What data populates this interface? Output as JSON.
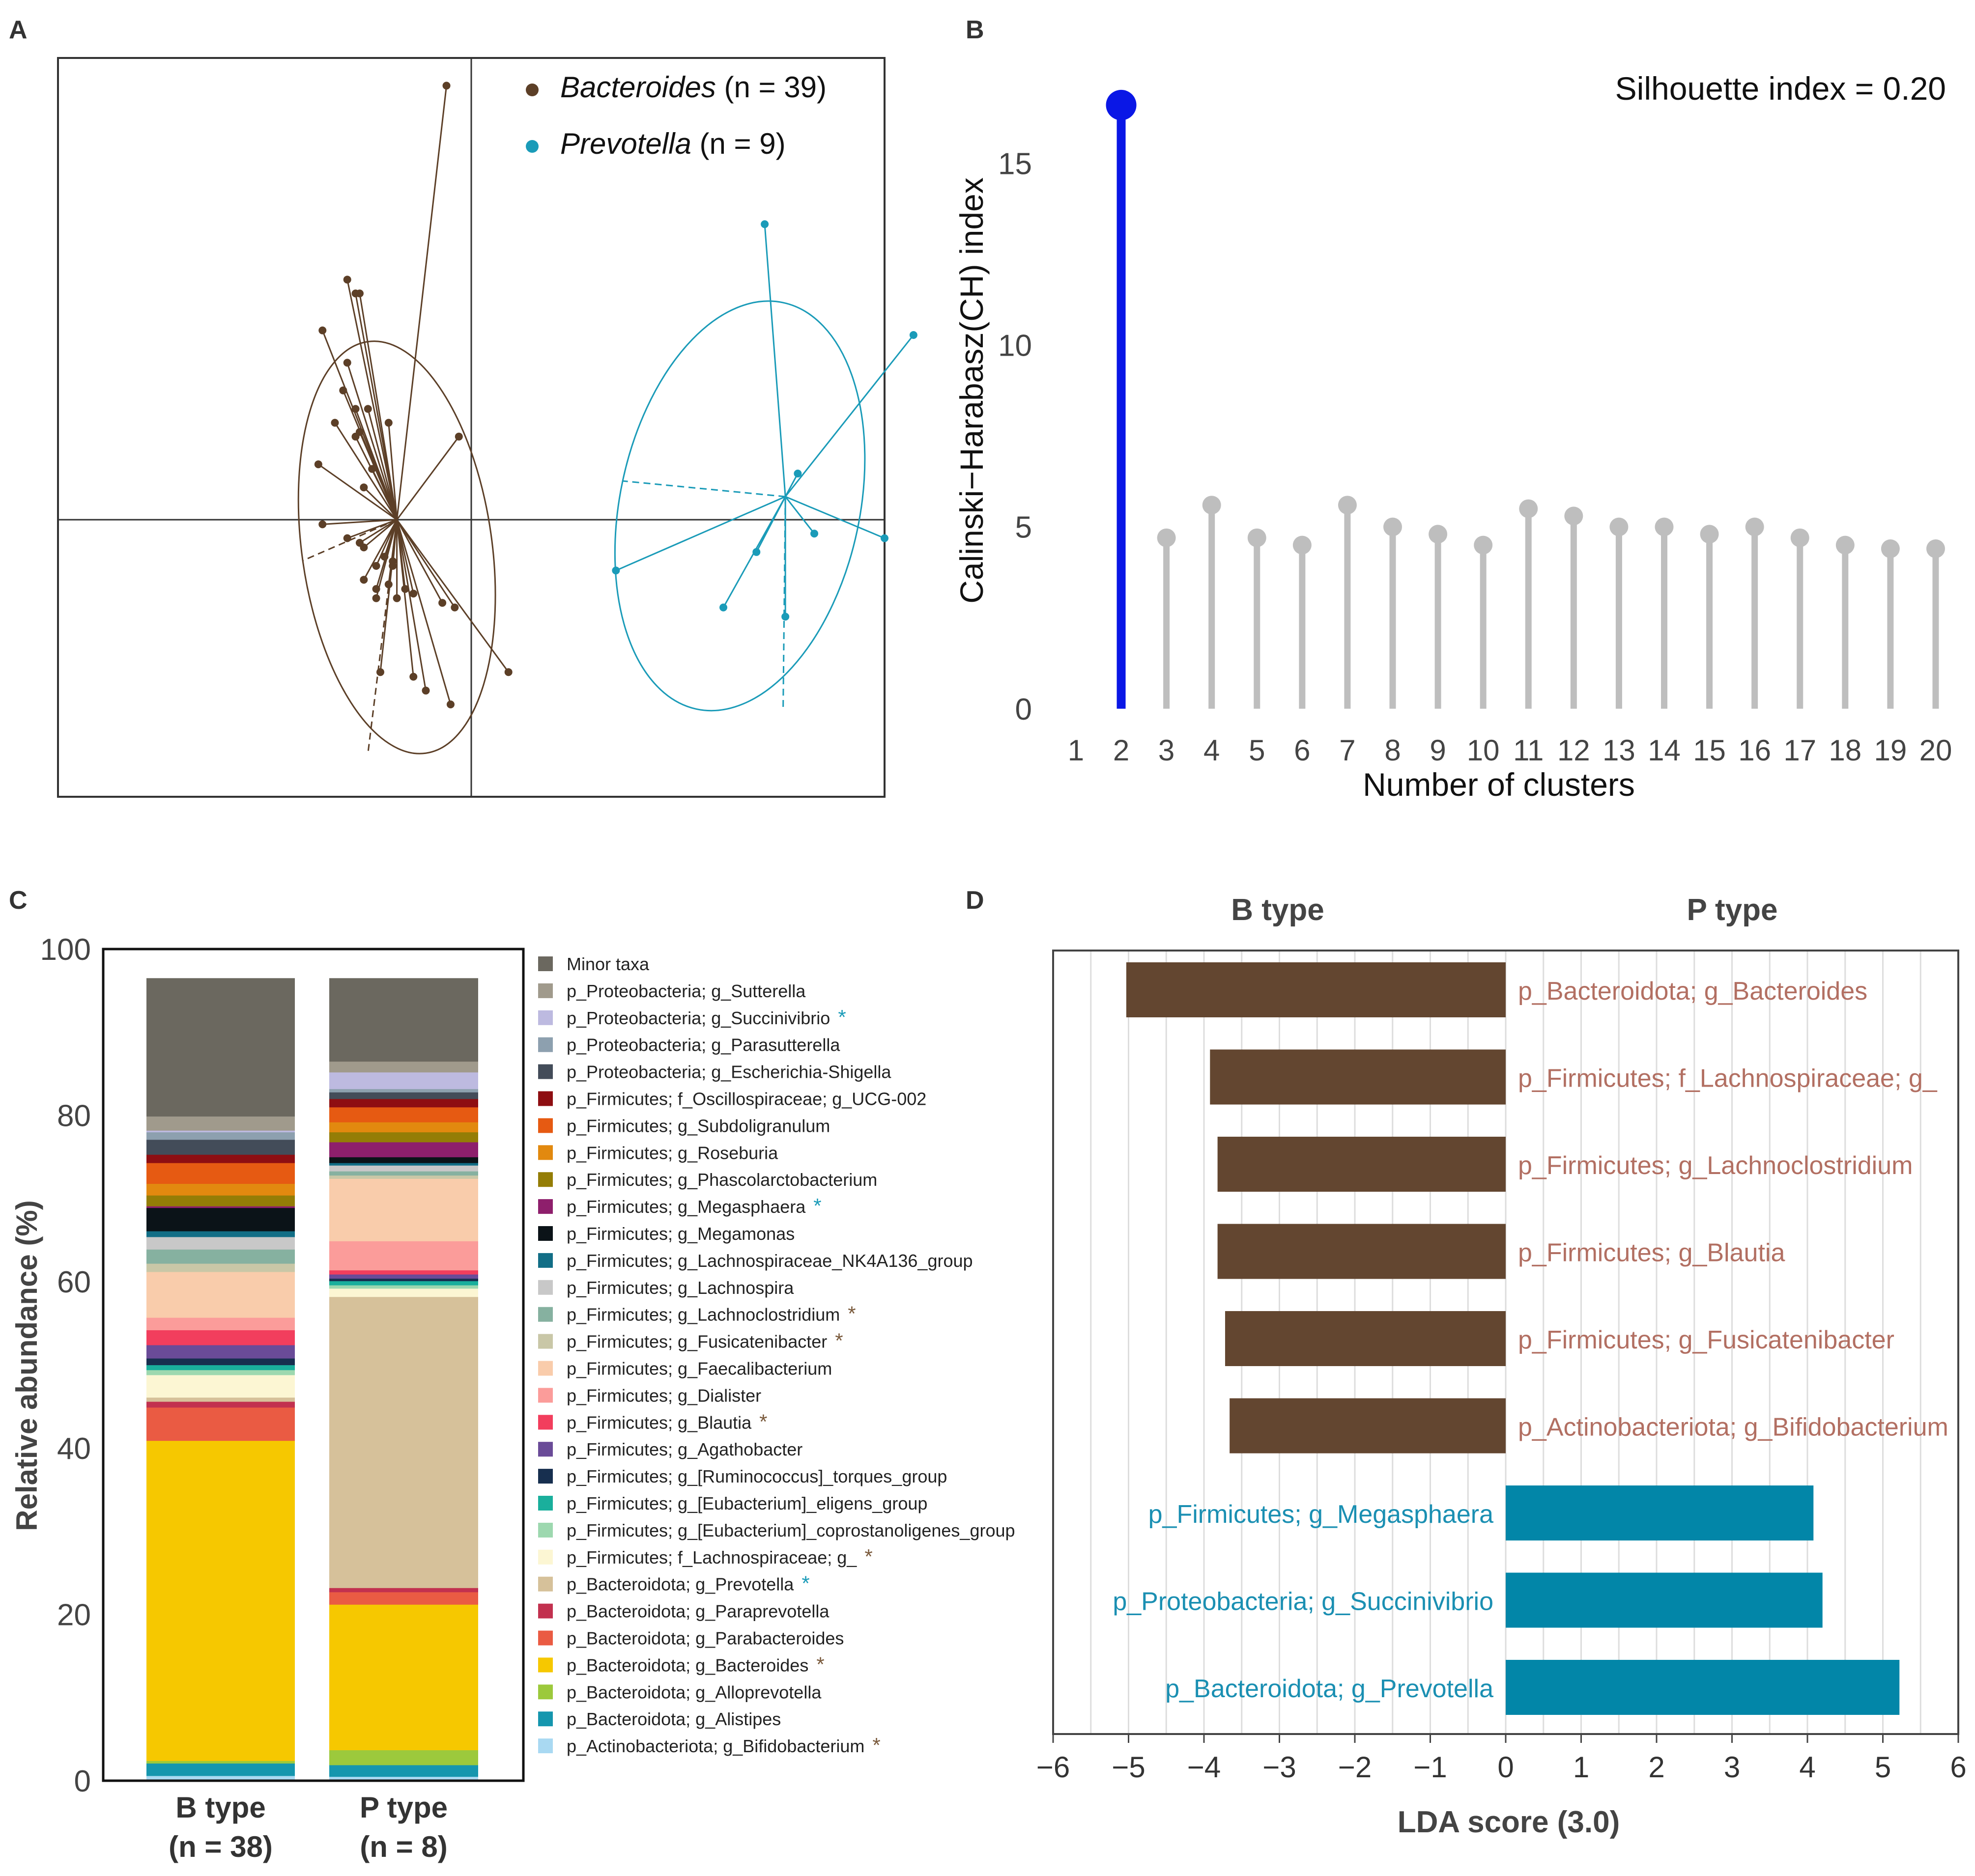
{
  "panel_labels": {
    "a": "A",
    "b": "B",
    "c": "C",
    "d": "D"
  },
  "chart_data": [
    {
      "panel": "A",
      "type": "scatter",
      "legend": [
        {
          "label": "Bacteroides",
          "n_label": "n = 39",
          "color": "#5C3F27"
        },
        {
          "label": "Prevotella",
          "n_label": "n = 9",
          "color": "#1A9BB8"
        }
      ],
      "legend_position": "top-right",
      "axis_lines": {
        "x": 0,
        "y": 0
      },
      "xlim": [
        -1.0,
        1.0
      ],
      "ylim": [
        -0.6,
        1.0
      ],
      "groups": [
        {
          "name": "Bacteroides",
          "color": "#5C3F27",
          "centroid": [
            -0.18,
            0.0
          ],
          "points": [
            [
              -0.06,
              0.94
            ],
            [
              -0.3,
              0.52
            ],
            [
              -0.28,
              0.49
            ],
            [
              -0.27,
              0.49
            ],
            [
              -0.36,
              0.41
            ],
            [
              -0.3,
              0.34
            ],
            [
              -0.31,
              0.28
            ],
            [
              -0.28,
              0.24
            ],
            [
              -0.25,
              0.24
            ],
            [
              -0.33,
              0.21
            ],
            [
              -0.2,
              0.21
            ],
            [
              -0.27,
              0.19
            ],
            [
              -0.28,
              0.18
            ],
            [
              -0.03,
              0.18
            ],
            [
              -0.37,
              0.12
            ],
            [
              -0.24,
              0.11
            ],
            [
              -0.26,
              0.07
            ],
            [
              -0.36,
              -0.01
            ],
            [
              -0.3,
              -0.04
            ],
            [
              -0.27,
              -0.05
            ],
            [
              -0.26,
              -0.06
            ],
            [
              -0.21,
              -0.08
            ],
            [
              -0.19,
              -0.09
            ],
            [
              -0.23,
              -0.1
            ],
            [
              -0.19,
              -0.1
            ],
            [
              -0.26,
              -0.13
            ],
            [
              -0.23,
              -0.15
            ],
            [
              -0.2,
              -0.14
            ],
            [
              -0.16,
              -0.15
            ],
            [
              -0.23,
              -0.17
            ],
            [
              -0.18,
              -0.17
            ],
            [
              -0.14,
              -0.16
            ],
            [
              -0.07,
              -0.18
            ],
            [
              -0.04,
              -0.19
            ],
            [
              -0.22,
              -0.33
            ],
            [
              -0.14,
              -0.34
            ],
            [
              -0.11,
              -0.37
            ],
            [
              -0.05,
              -0.4
            ],
            [
              0.09,
              -0.33
            ]
          ],
          "ellipse": {
            "cx": -0.18,
            "cy": -0.06,
            "rx": 0.23,
            "ry": 0.45,
            "rotation_deg": -8
          }
        },
        {
          "name": "Prevotella",
          "color": "#1A9BB8",
          "centroid": [
            0.76,
            0.05
          ],
          "points": [
            [
              0.71,
              0.64
            ],
            [
              1.07,
              0.4
            ],
            [
              0.79,
              0.1
            ],
            [
              1.0,
              -0.04
            ],
            [
              0.83,
              -0.03
            ],
            [
              0.69,
              -0.07
            ],
            [
              0.35,
              -0.11
            ],
            [
              0.61,
              -0.19
            ],
            [
              0.76,
              -0.21
            ]
          ],
          "ellipse": {
            "cx": 0.65,
            "cy": 0.03,
            "rx": 0.29,
            "ry": 0.45,
            "rotation_deg": 12
          }
        }
      ]
    },
    {
      "panel": "B",
      "type": "lollipop",
      "annotation": "Silhouette index = 0.20",
      "xlabel": "Number of clusters",
      "ylabel": "Calinski−Harabasz(CH) index",
      "x": [
        2,
        3,
        4,
        5,
        6,
        7,
        8,
        9,
        10,
        11,
        12,
        13,
        14,
        15,
        16,
        17,
        18,
        19,
        20
      ],
      "values": [
        16.6,
        4.7,
        5.6,
        4.7,
        4.5,
        5.6,
        5.0,
        4.8,
        4.5,
        5.5,
        5.3,
        5.0,
        5.0,
        4.8,
        5.0,
        4.7,
        4.5,
        4.4,
        4.4
      ],
      "highlight": {
        "x": 2,
        "color": "#0A17E6"
      },
      "point_color": "#BEBEBE",
      "xticks": [
        1,
        2,
        3,
        4,
        5,
        6,
        7,
        8,
        9,
        10,
        11,
        12,
        13,
        14,
        15,
        16,
        17,
        18,
        19,
        20
      ],
      "xtick_labels": [
        "1",
        "2",
        "3",
        "4",
        "5",
        "6",
        "7",
        "8",
        "9",
        "10",
        "11",
        "12",
        "13",
        "14",
        "15",
        "16",
        "17",
        "18",
        "19",
        "20"
      ],
      "yticks": [
        0,
        5,
        10,
        15
      ],
      "ytick_labels": [
        "0",
        "5",
        "10",
        "15"
      ],
      "xlim": [
        0.3,
        20.5
      ],
      "ylim": [
        -0.3,
        17.8
      ]
    },
    {
      "panel": "C",
      "type": "stacked_bar",
      "ylabel": "Relative abundance (%)",
      "ylim": [
        0,
        100
      ],
      "yticks": [
        0,
        20,
        40,
        60,
        80,
        100
      ],
      "ytick_labels": [
        "0",
        "20",
        "40",
        "60",
        "80",
        "100"
      ],
      "categories": [
        {
          "label": "B type",
          "sublabel": "(n = 38)"
        },
        {
          "label": "P type",
          "sublabel": "(n = 8)"
        }
      ],
      "series": [
        {
          "name": "p_Actinobacteriota; g_Bifidobacterium",
          "color": "#A9D9F2",
          "star": true,
          "star_color": "#7A5A3C",
          "values": [
            0.6,
            0.5
          ]
        },
        {
          "name": "p_Bacteroidota; g_Alistipes",
          "color": "#1596AE",
          "star": false,
          "values": [
            1.5,
            1.4
          ]
        },
        {
          "name": "p_Bacteroidota; g_Alloprevotella",
          "color": "#9CC93C",
          "star": false,
          "values": [
            0.3,
            1.8
          ]
        },
        {
          "name": "p_Bacteroidota; g_Bacteroides",
          "color": "#F6C800",
          "star": true,
          "star_color": "#7A5A3C",
          "values": [
            38.5,
            17.5
          ]
        },
        {
          "name": "p_Bacteroidota; g_Parabacteroides",
          "color": "#EA5B43",
          "star": false,
          "values": [
            4.0,
            1.5
          ]
        },
        {
          "name": "p_Bacteroidota; g_Paraprevotella",
          "color": "#C2314F",
          "star": false,
          "values": [
            0.7,
            0.5
          ]
        },
        {
          "name": "p_Bacteroidota; g_Prevotella",
          "color": "#D6C19A",
          "star": true,
          "star_color": "#1A9BB8",
          "values": [
            0.5,
            35.0
          ]
        },
        {
          "name": "p_Firmicutes; f_Lachnospiraceae; g_",
          "color": "#FCF6D3",
          "star": true,
          "star_color": "#7A5A3C",
          "values": [
            2.7,
            1.0
          ]
        },
        {
          "name": "p_Firmicutes; g_[Eubacterium]_coprostanoligenes_group",
          "color": "#9DD8AF",
          "star": false,
          "values": [
            0.6,
            0.4
          ]
        },
        {
          "name": "p_Firmicutes; g_[Eubacterium]_eligens_group",
          "color": "#1AAF9C",
          "star": false,
          "values": [
            0.6,
            0.5
          ]
        },
        {
          "name": "p_Firmicutes; g_[Ruminococcus]_torques_group",
          "color": "#172F4F",
          "star": false,
          "values": [
            0.8,
            0.3
          ]
        },
        {
          "name": "p_Firmicutes; g_Agathobacter",
          "color": "#6A4B98",
          "star": false,
          "values": [
            1.6,
            0.5
          ]
        },
        {
          "name": "p_Firmicutes; g_Blautia",
          "color": "#F23E5D",
          "star": true,
          "star_color": "#7A5A3C",
          "values": [
            1.8,
            0.5
          ]
        },
        {
          "name": "p_Firmicutes; g_Dialister",
          "color": "#FB9C9A",
          "star": false,
          "values": [
            1.5,
            3.5
          ]
        },
        {
          "name": "p_Firmicutes; g_Faecalibacterium",
          "color": "#F9CCAB",
          "star": false,
          "values": [
            5.5,
            7.5
          ]
        },
        {
          "name": "p_Firmicutes; g_Fusicatenibacter",
          "color": "#C9C7A7",
          "star": true,
          "star_color": "#7A5A3C",
          "values": [
            1.0,
            0.4
          ]
        },
        {
          "name": "p_Firmicutes; g_Lachnoclostridium",
          "color": "#86B1A0",
          "star": true,
          "star_color": "#7A5A3C",
          "values": [
            1.7,
            0.5
          ]
        },
        {
          "name": "p_Firmicutes; g_Lachnospira",
          "color": "#C8C8C8",
          "star": false,
          "values": [
            1.5,
            0.7
          ]
        },
        {
          "name": "p_Firmicutes; g_Lachnospiraceae_NK4A136_group",
          "color": "#126E86",
          "star": false,
          "values": [
            0.7,
            0.3
          ]
        },
        {
          "name": "p_Firmicutes; g_Megamonas",
          "color": "#0B1318",
          "star": false,
          "values": [
            2.8,
            0.7
          ]
        },
        {
          "name": "p_Firmicutes; g_Megasphaera",
          "color": "#8E1F6C",
          "star": true,
          "star_color": "#1A9BB8",
          "values": [
            0.2,
            1.8
          ]
        },
        {
          "name": "p_Firmicutes; g_Phascolarctobacterium",
          "color": "#947D06",
          "star": false,
          "values": [
            1.3,
            1.2
          ]
        },
        {
          "name": "p_Firmicutes; g_Roseburia",
          "color": "#E2890F",
          "star": false,
          "values": [
            1.4,
            1.2
          ]
        },
        {
          "name": "p_Firmicutes; g_Subdoligranulum",
          "color": "#E65A12",
          "star": false,
          "values": [
            2.5,
            1.8
          ]
        },
        {
          "name": "p_Firmicutes; f_Oscillospiraceae; g_UCG-002",
          "color": "#8E0E12",
          "star": false,
          "values": [
            1.0,
            1.0
          ]
        },
        {
          "name": "p_Proteobacteria; g_Escherichia-Shigella",
          "color": "#434C59",
          "star": false,
          "values": [
            1.8,
            0.8
          ]
        },
        {
          "name": "p_Proteobacteria; g_Parasutterella",
          "color": "#8DA0AF",
          "star": false,
          "values": [
            0.9,
            0.4
          ]
        },
        {
          "name": "p_Proteobacteria; g_Succinivibrio",
          "color": "#BDBAE0",
          "star": true,
          "star_color": "#1A9BB8",
          "values": [
            0.2,
            2.0
          ]
        },
        {
          "name": "p_Proteobacteria; g_Sutterella",
          "color": "#A09A8C",
          "star": false,
          "values": [
            1.7,
            1.3
          ]
        },
        {
          "name": "Minor taxa",
          "color": "#6B685F",
          "star": false,
          "values": [
            16.6,
            10.0
          ]
        }
      ]
    },
    {
      "panel": "D",
      "type": "bar",
      "orientation": "horizontal",
      "group_titles": {
        "left": "B type",
        "right": "P type"
      },
      "xlabel": "LDA score (3.0)",
      "xlim": [
        -6,
        6
      ],
      "xticks": [
        -6,
        -5,
        -4,
        -3,
        -2,
        -1,
        0,
        1,
        2,
        3,
        4,
        5,
        6
      ],
      "xtick_labels": [
        "−6",
        "−5",
        "−4",
        "−3",
        "−2",
        "−1",
        "0",
        "1",
        "2",
        "3",
        "4",
        "5",
        "6"
      ],
      "categories": [
        "p_Bacteroidota; g_Bacteroides",
        "p_Firmicutes; f_Lachnospiraceae; g_",
        "p_Firmicutes; g_Lachnoclostridium",
        "p_Firmicutes; g_Blautia",
        "p_Firmicutes; g_Fusicatenibacter",
        "p_Actinobacteriota; g_Bifidobacterium",
        "p_Firmicutes; g_Megasphaera",
        "p_Proteobacteria; g_Succinivibrio",
        "p_Bacteroidota; g_Prevotella"
      ],
      "values": [
        -5.03,
        -3.92,
        -3.82,
        -3.82,
        -3.72,
        -3.66,
        4.08,
        4.2,
        5.22
      ],
      "colors": {
        "negative_bar": "#634630",
        "negative_label": "#B26F62",
        "positive_bar": "#0286A8",
        "positive_label": "#1A8FB2"
      }
    }
  ]
}
